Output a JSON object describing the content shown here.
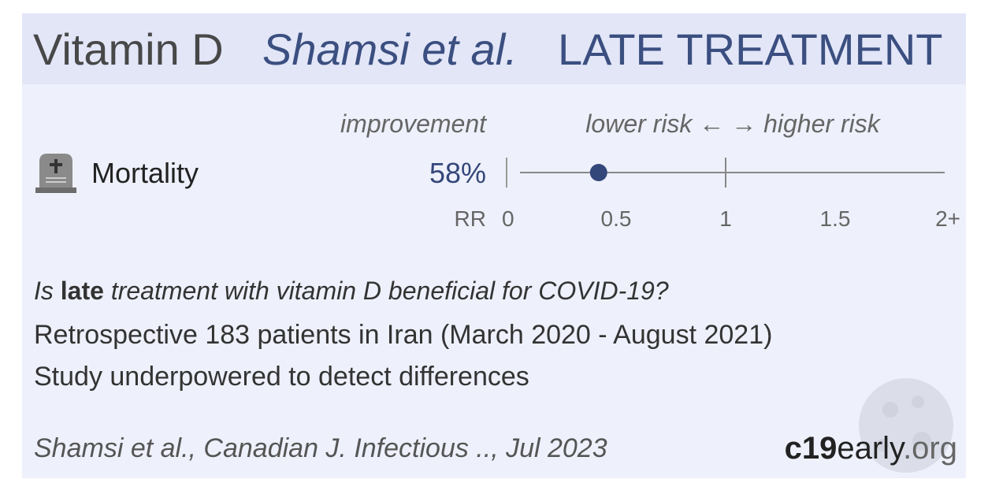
{
  "header": {
    "topic": "Vitamin D",
    "authors": "Shamsi et al.",
    "stage": "LATE TREATMENT"
  },
  "chart_data": {
    "type": "forest",
    "column_labels": {
      "improvement": "improvement",
      "direction": "lower risk ← → higher risk"
    },
    "categories": [
      "Mortality"
    ],
    "improvement_labels": [
      "58%"
    ],
    "values": [
      0.42
    ],
    "color": "#34477a",
    "xlabel": "RR",
    "xlim": [
      0,
      2
    ],
    "xticks": [
      0,
      0.5,
      1,
      1.5,
      {
        "value": 2,
        "label": "2+"
      }
    ]
  },
  "summary": {
    "question": {
      "before": "Is ",
      "bold": "late",
      "after": " treatment with vitamin D beneficial for COVID-19?"
    },
    "lines": [
      "Retrospective 183 patients in Iran (March 2020 - August 2021)",
      "Study underpowered to detect differences"
    ]
  },
  "footer": {
    "citation": "Shamsi et al., Canadian J. Infectious .., Jul 2023",
    "brand": {
      "a": "c19",
      "b": "early",
      "c": ".org"
    }
  }
}
